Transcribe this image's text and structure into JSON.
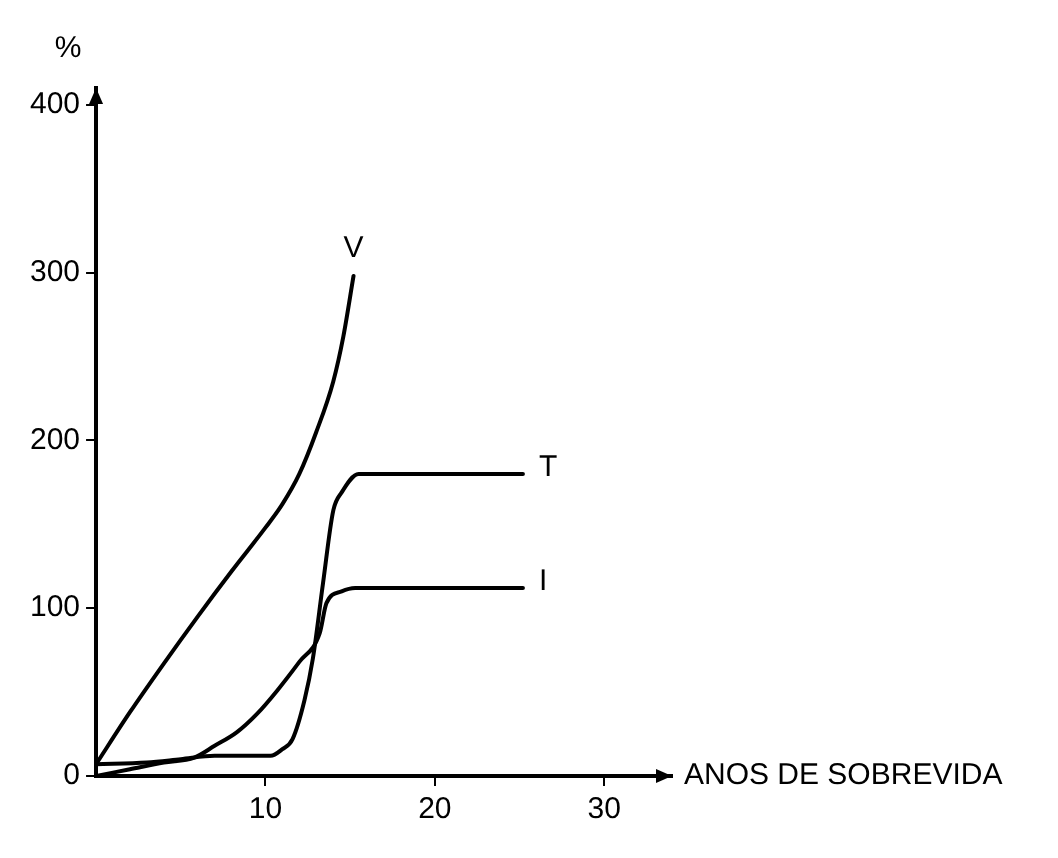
{
  "chart_data": {
    "type": "line",
    "xlabel": "ANOS DE SOBREVIDA",
    "ylabel": "%",
    "xlim": [
      0,
      34
    ],
    "ylim": [
      0,
      410
    ],
    "xticks": [
      10,
      20,
      30
    ],
    "yticks": [
      0,
      100,
      200,
      300,
      400
    ],
    "grid": false,
    "legend": false,
    "marker": "none",
    "line_style": "solid",
    "series": [
      {
        "name": "V",
        "color": "#000000",
        "x": [
          0,
          2,
          4,
          6,
          8,
          10,
          11,
          12,
          13,
          14,
          14.6,
          15.2
        ],
        "values": [
          7,
          38,
          67,
          95,
          122,
          148,
          162,
          180,
          205,
          235,
          262,
          298
        ]
      },
      {
        "name": "T",
        "color": "#000000",
        "x": [
          0,
          3,
          5,
          7,
          9,
          10.3,
          11,
          11.6,
          12.3,
          12.8,
          13.4,
          14,
          14.5,
          15.5,
          20,
          25.2
        ],
        "values": [
          7,
          8,
          10,
          12,
          12,
          12,
          16,
          22,
          45,
          70,
          115,
          158,
          169,
          180,
          180,
          180
        ]
      },
      {
        "name": "I",
        "color": "#000000",
        "x": [
          0,
          2,
          4,
          5.8,
          7,
          8.3,
          9.5,
          10.7,
          12,
          13.2,
          13.6,
          14.5,
          15.3,
          20,
          25.2
        ],
        "values": [
          0,
          4,
          8,
          11,
          18,
          26,
          37,
          51,
          68,
          85,
          103,
          110,
          112,
          112,
          112
        ]
      }
    ]
  }
}
